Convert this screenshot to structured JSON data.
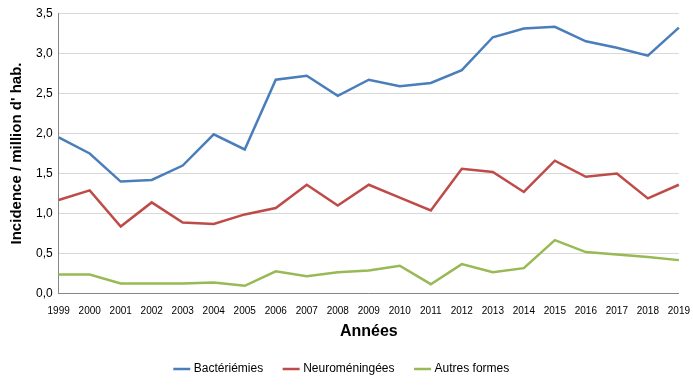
{
  "chart_data": {
    "type": "line",
    "y_label": "Incidence / million d' hab.",
    "x_label": "Années",
    "categories": [
      "1999",
      "2000",
      "2001",
      "2002",
      "2003",
      "2004",
      "2005",
      "2006",
      "2007",
      "2008",
      "2009",
      "2010",
      "2011",
      "2012",
      "2013",
      "2014",
      "2015",
      "2016",
      "2017",
      "2018",
      "2019"
    ],
    "series": [
      {
        "name": "Bactériémies",
        "color": "#4a7ebb",
        "values": [
          1.95,
          1.75,
          1.4,
          1.42,
          1.6,
          1.99,
          1.8,
          2.67,
          2.72,
          2.47,
          2.67,
          2.59,
          2.63,
          2.79,
          3.2,
          3.31,
          3.33,
          3.15,
          3.07,
          2.97,
          3.32
        ]
      },
      {
        "name": "Neuroméningées",
        "color": "#be4b48",
        "values": [
          1.17,
          1.29,
          0.84,
          1.14,
          0.89,
          0.87,
          0.99,
          1.07,
          1.36,
          1.1,
          1.36,
          1.2,
          1.04,
          1.56,
          1.52,
          1.27,
          1.66,
          1.46,
          1.5,
          1.19,
          1.36
        ]
      },
      {
        "name": "Autres formes",
        "color": "#98b954",
        "values": [
          0.24,
          0.24,
          0.13,
          0.13,
          0.13,
          0.14,
          0.1,
          0.28,
          0.22,
          0.27,
          0.29,
          0.35,
          0.12,
          0.37,
          0.27,
          0.32,
          0.67,
          0.52,
          0.49,
          0.46,
          0.42
        ]
      }
    ],
    "ylim": [
      0,
      3.5
    ],
    "yticks": [
      {
        "value": 0,
        "label": "0,0"
      },
      {
        "value": 0.5,
        "label": "0,5"
      },
      {
        "value": 1,
        "label": "1,0"
      },
      {
        "value": 1.5,
        "label": "1,5"
      },
      {
        "value": 2,
        "label": "2,0"
      },
      {
        "value": 2.5,
        "label": "2,5"
      },
      {
        "value": 3,
        "label": "3,0"
      },
      {
        "value": 3.5,
        "label": "3,5"
      }
    ],
    "grid": true,
    "legend": "bottom"
  }
}
